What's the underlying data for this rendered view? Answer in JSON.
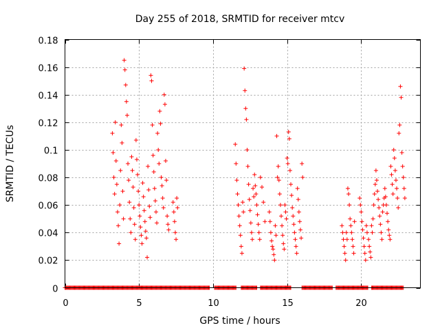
{
  "chart_data": {
    "type": "scatter",
    "title": "Day 255 of 2018, SRMTID for receiver mtcv",
    "xlabel": "GPS time / hours",
    "ylabel": "SRMTID / TECUs",
    "xlim": [
      0,
      24
    ],
    "ylim": [
      0,
      0.18
    ],
    "grid": true,
    "x_ticks": [
      0,
      5,
      10,
      15,
      20
    ],
    "x_tick_labels": [
      "0",
      "5",
      "10",
      "15",
      "20"
    ],
    "y_ticks": [
      0,
      0.02,
      0.04,
      0.06,
      0.08,
      0.1,
      0.12,
      0.14,
      0.16,
      0.18
    ],
    "y_tick_labels": [
      "0",
      "0.02",
      "0.04",
      "0.06",
      "0.08",
      "0.1",
      "0.12",
      "0.14",
      "0.16",
      "0.18"
    ],
    "marker": "+",
    "series": [
      {
        "name": "SRMTID",
        "color": "#ff0000",
        "points": [
          [
            3.2,
            0.112
          ],
          [
            3.25,
            0.098
          ],
          [
            3.3,
            0.08
          ],
          [
            3.35,
            0.068
          ],
          [
            3.4,
            0.12
          ],
          [
            3.45,
            0.092
          ],
          [
            3.5,
            0.075
          ],
          [
            3.55,
            0.055
          ],
          [
            3.6,
            0.045
          ],
          [
            3.65,
            0.032
          ],
          [
            3.7,
            0.06
          ],
          [
            3.75,
            0.085
          ],
          [
            3.8,
            0.118
          ],
          [
            3.85,
            0.105
          ],
          [
            3.9,
            0.07
          ],
          [
            3.95,
            0.05
          ],
          [
            4.0,
            0.165
          ],
          [
            4.05,
            0.158
          ],
          [
            4.1,
            0.147
          ],
          [
            4.15,
            0.135
          ],
          [
            4.2,
            0.125
          ],
          [
            4.25,
            0.09
          ],
          [
            4.3,
            0.078
          ],
          [
            4.35,
            0.062
          ],
          [
            4.4,
            0.05
          ],
          [
            4.45,
            0.04
          ],
          [
            4.5,
            0.095
          ],
          [
            4.55,
            0.085
          ],
          [
            4.6,
            0.073
          ],
          [
            4.65,
            0.058
          ],
          [
            4.7,
            0.046
          ],
          [
            4.75,
            0.035
          ],
          [
            4.8,
            0.107
          ],
          [
            4.85,
            0.093
          ],
          [
            4.9,
            0.082
          ],
          [
            4.95,
            0.07
          ],
          [
            5.0,
            0.06
          ],
          [
            5.05,
            0.052
          ],
          [
            5.1,
            0.044
          ],
          [
            5.15,
            0.038
          ],
          [
            5.2,
            0.032
          ],
          [
            5.25,
            0.076
          ],
          [
            5.3,
            0.066
          ],
          [
            5.35,
            0.056
          ],
          [
            5.4,
            0.048
          ],
          [
            5.45,
            0.041
          ],
          [
            5.5,
            0.036
          ],
          [
            5.55,
            0.022
          ],
          [
            5.6,
            0.088
          ],
          [
            5.65,
            0.071
          ],
          [
            5.7,
            0.059
          ],
          [
            5.75,
            0.051
          ],
          [
            5.8,
            0.154
          ],
          [
            5.85,
            0.15
          ],
          [
            5.9,
            0.118
          ],
          [
            5.95,
            0.096
          ],
          [
            6.0,
            0.084
          ],
          [
            6.05,
            0.072
          ],
          [
            6.1,
            0.063
          ],
          [
            6.15,
            0.055
          ],
          [
            6.2,
            0.047
          ],
          [
            6.25,
            0.112
          ],
          [
            6.3,
            0.1
          ],
          [
            6.35,
            0.09
          ],
          [
            6.4,
            0.128
          ],
          [
            6.45,
            0.119
          ],
          [
            6.5,
            0.08
          ],
          [
            6.55,
            0.074
          ],
          [
            6.6,
            0.065
          ],
          [
            6.65,
            0.058
          ],
          [
            6.7,
            0.14
          ],
          [
            6.75,
            0.133
          ],
          [
            6.8,
            0.092
          ],
          [
            6.85,
            0.078
          ],
          [
            6.9,
            0.052
          ],
          [
            6.95,
            0.046
          ],
          [
            7.0,
            0.042
          ],
          [
            7.3,
            0.062
          ],
          [
            7.35,
            0.055
          ],
          [
            7.4,
            0.048
          ],
          [
            7.45,
            0.04
          ],
          [
            7.5,
            0.035
          ],
          [
            7.55,
            0.065
          ],
          [
            7.6,
            0.058
          ],
          [
            11.5,
            0.104
          ],
          [
            11.55,
            0.09
          ],
          [
            11.6,
            0.078
          ],
          [
            11.65,
            0.068
          ],
          [
            11.7,
            0.06
          ],
          [
            11.75,
            0.052
          ],
          [
            11.8,
            0.045
          ],
          [
            11.85,
            0.038
          ],
          [
            11.9,
            0.03
          ],
          [
            11.95,
            0.025
          ],
          [
            12.0,
            0.062
          ],
          [
            12.05,
            0.055
          ],
          [
            12.1,
            0.159
          ],
          [
            12.15,
            0.143
          ],
          [
            12.2,
            0.13
          ],
          [
            12.25,
            0.122
          ],
          [
            12.3,
            0.1
          ],
          [
            12.35,
            0.088
          ],
          [
            12.4,
            0.075
          ],
          [
            12.45,
            0.064
          ],
          [
            12.5,
            0.056
          ],
          [
            12.55,
            0.047
          ],
          [
            12.6,
            0.04
          ],
          [
            12.65,
            0.035
          ],
          [
            12.7,
            0.072
          ],
          [
            12.75,
            0.066
          ],
          [
            12.8,
            0.082
          ],
          [
            12.85,
            0.074
          ],
          [
            12.9,
            0.068
          ],
          [
            12.95,
            0.06
          ],
          [
            13.0,
            0.053
          ],
          [
            13.05,
            0.046
          ],
          [
            13.1,
            0.04
          ],
          [
            13.15,
            0.035
          ],
          [
            13.2,
            0.08
          ],
          [
            13.3,
            0.073
          ],
          [
            13.4,
            0.062
          ],
          [
            13.5,
            0.048
          ],
          [
            13.8,
            0.055
          ],
          [
            13.85,
            0.048
          ],
          [
            13.9,
            0.04
          ],
          [
            13.95,
            0.034
          ],
          [
            14.0,
            0.03
          ],
          [
            14.05,
            0.028
          ],
          [
            14.1,
            0.024
          ],
          [
            14.15,
            0.02
          ],
          [
            14.2,
            0.045
          ],
          [
            14.25,
            0.038
          ],
          [
            14.3,
            0.11
          ],
          [
            14.35,
            0.08
          ],
          [
            14.4,
            0.088
          ],
          [
            14.45,
            0.078
          ],
          [
            14.5,
            0.068
          ],
          [
            14.55,
            0.06
          ],
          [
            14.6,
            0.052
          ],
          [
            14.65,
            0.045
          ],
          [
            14.7,
            0.038
          ],
          [
            14.75,
            0.032
          ],
          [
            14.8,
            0.028
          ],
          [
            14.85,
            0.06
          ],
          [
            14.9,
            0.055
          ],
          [
            14.95,
            0.05
          ],
          [
            15.0,
            0.094
          ],
          [
            15.05,
            0.09
          ],
          [
            15.1,
            0.113
          ],
          [
            15.15,
            0.108
          ],
          [
            15.2,
            0.085
          ],
          [
            15.25,
            0.075
          ],
          [
            15.3,
            0.067
          ],
          [
            15.35,
            0.058
          ],
          [
            15.4,
            0.052
          ],
          [
            15.45,
            0.046
          ],
          [
            15.5,
            0.04
          ],
          [
            15.55,
            0.035
          ],
          [
            15.6,
            0.03
          ],
          [
            15.65,
            0.025
          ],
          [
            15.7,
            0.072
          ],
          [
            15.75,
            0.064
          ],
          [
            15.8,
            0.055
          ],
          [
            15.85,
            0.048
          ],
          [
            15.9,
            0.042
          ],
          [
            15.95,
            0.036
          ],
          [
            16.0,
            0.09
          ],
          [
            16.05,
            0.08
          ],
          [
            18.7,
            0.045
          ],
          [
            18.75,
            0.04
          ],
          [
            18.8,
            0.035
          ],
          [
            18.85,
            0.03
          ],
          [
            18.9,
            0.025
          ],
          [
            18.95,
            0.02
          ],
          [
            19.0,
            0.04
          ],
          [
            19.05,
            0.035
          ],
          [
            19.1,
            0.072
          ],
          [
            19.15,
            0.068
          ],
          [
            19.2,
            0.06
          ],
          [
            19.25,
            0.05
          ],
          [
            19.3,
            0.045
          ],
          [
            19.35,
            0.04
          ],
          [
            19.4,
            0.035
          ],
          [
            19.45,
            0.03
          ],
          [
            19.5,
            0.025
          ],
          [
            19.55,
            0.048
          ],
          [
            19.9,
            0.065
          ],
          [
            19.95,
            0.06
          ],
          [
            20.0,
            0.055
          ],
          [
            20.05,
            0.048
          ],
          [
            20.1,
            0.042
          ],
          [
            20.15,
            0.036
          ],
          [
            20.2,
            0.03
          ],
          [
            20.25,
            0.025
          ],
          [
            20.3,
            0.02
          ],
          [
            20.35,
            0.045
          ],
          [
            20.4,
            0.04
          ],
          [
            20.5,
            0.035
          ],
          [
            20.55,
            0.03
          ],
          [
            20.6,
            0.026
          ],
          [
            20.65,
            0.022
          ],
          [
            20.7,
            0.045
          ],
          [
            20.75,
            0.04
          ],
          [
            20.8,
            0.05
          ],
          [
            20.85,
            0.06
          ],
          [
            20.9,
            0.068
          ],
          [
            20.95,
            0.075
          ],
          [
            21.0,
            0.085
          ],
          [
            21.05,
            0.078
          ],
          [
            21.1,
            0.07
          ],
          [
            21.15,
            0.064
          ],
          [
            21.2,
            0.058
          ],
          [
            21.25,
            0.052
          ],
          [
            21.3,
            0.046
          ],
          [
            21.35,
            0.04
          ],
          [
            21.4,
            0.035
          ],
          [
            21.45,
            0.055
          ],
          [
            21.5,
            0.06
          ],
          [
            21.55,
            0.065
          ],
          [
            21.6,
            0.072
          ],
          [
            21.65,
            0.066
          ],
          [
            21.7,
            0.06
          ],
          [
            21.75,
            0.054
          ],
          [
            21.8,
            0.048
          ],
          [
            21.85,
            0.042
          ],
          [
            21.9,
            0.038
          ],
          [
            21.95,
            0.035
          ],
          [
            22.0,
            0.088
          ],
          [
            22.05,
            0.082
          ],
          [
            22.1,
            0.075
          ],
          [
            22.15,
            0.068
          ],
          [
            22.2,
            0.1
          ],
          [
            22.25,
            0.094
          ],
          [
            22.3,
            0.085
          ],
          [
            22.35,
            0.078
          ],
          [
            22.4,
            0.072
          ],
          [
            22.45,
            0.065
          ],
          [
            22.5,
            0.058
          ],
          [
            22.55,
            0.112
          ],
          [
            22.6,
            0.118
          ],
          [
            22.65,
            0.146
          ],
          [
            22.7,
            0.138
          ],
          [
            22.75,
            0.098
          ],
          [
            22.8,
            0.088
          ],
          [
            22.85,
            0.08
          ],
          [
            22.9,
            0.072
          ],
          [
            22.95,
            0.065
          ]
        ]
      }
    ],
    "zero_band": {
      "value": 0,
      "segments": [
        [
          0,
          9.8
        ],
        [
          10.1,
          11.6
        ],
        [
          11.9,
          13.0
        ],
        [
          13.2,
          15.3
        ],
        [
          16.0,
          18.1
        ],
        [
          18.3,
          20.5
        ],
        [
          20.7,
          22.9
        ]
      ]
    }
  }
}
